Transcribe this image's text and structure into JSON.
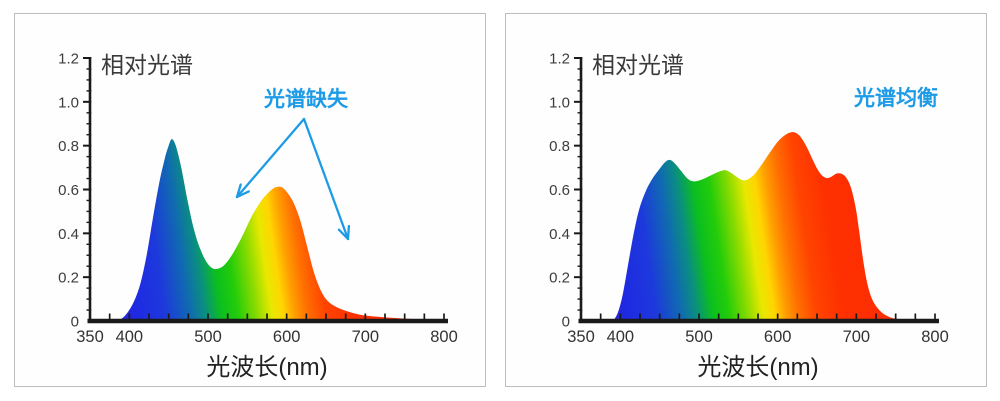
{
  "page": {
    "background": "#ffffff",
    "panel_border_color": "#bdbdbd",
    "axis_color": "#1a1a1a",
    "accent_blue": "#1d9be6"
  },
  "spectrum_colors": [
    [
      380,
      "#2a25cf"
    ],
    [
      410,
      "#1e2ae2"
    ],
    [
      445,
      "#1d39dc"
    ],
    [
      475,
      "#1069b2"
    ],
    [
      495,
      "#0a8f80"
    ],
    [
      515,
      "#0bbf1e"
    ],
    [
      535,
      "#23cc0a"
    ],
    [
      560,
      "#8fdc00"
    ],
    [
      578,
      "#e8e800"
    ],
    [
      592,
      "#ffd500"
    ],
    [
      606,
      "#ff9e00"
    ],
    [
      622,
      "#ff7000"
    ],
    [
      645,
      "#ff4400"
    ],
    [
      680,
      "#fe2f00"
    ],
    [
      800,
      "#fb2d08"
    ]
  ],
  "chart_data": [
    {
      "type": "area",
      "title": "相对光谱",
      "xlabel": "光波长(nm)",
      "annotation": "光谱缺失",
      "annotation_color": "#1d9be6",
      "xlim": [
        350,
        800
      ],
      "ylim": [
        0,
        1.2
      ],
      "x_ticks": [
        350,
        400,
        500,
        600,
        700,
        800
      ],
      "y_ticks": [
        "0",
        "0.2",
        "0.4",
        "0.6",
        "0.8",
        "1.0",
        "1.2"
      ],
      "x_minor_step_nm": 25,
      "y_minor_step": 0.05,
      "points": [
        [
          383,
          0
        ],
        [
          390,
          0.01
        ],
        [
          398,
          0.04
        ],
        [
          406,
          0.09
        ],
        [
          414,
          0.17
        ],
        [
          422,
          0.3
        ],
        [
          430,
          0.47
        ],
        [
          438,
          0.63
        ],
        [
          445,
          0.74
        ],
        [
          450,
          0.8
        ],
        [
          454,
          0.83
        ],
        [
          459,
          0.8
        ],
        [
          466,
          0.7
        ],
        [
          474,
          0.55
        ],
        [
          482,
          0.42
        ],
        [
          490,
          0.33
        ],
        [
          498,
          0.27
        ],
        [
          506,
          0.24
        ],
        [
          514,
          0.24
        ],
        [
          522,
          0.26
        ],
        [
          532,
          0.31
        ],
        [
          544,
          0.39
        ],
        [
          556,
          0.48
        ],
        [
          568,
          0.55
        ],
        [
          578,
          0.59
        ],
        [
          586,
          0.61
        ],
        [
          594,
          0.61
        ],
        [
          602,
          0.58
        ],
        [
          610,
          0.53
        ],
        [
          618,
          0.45
        ],
        [
          626,
          0.34
        ],
        [
          634,
          0.23
        ],
        [
          642,
          0.15
        ],
        [
          650,
          0.1
        ],
        [
          660,
          0.07
        ],
        [
          672,
          0.05
        ],
        [
          686,
          0.035
        ],
        [
          700,
          0.025
        ],
        [
          720,
          0.018
        ],
        [
          745,
          0.012
        ],
        [
          770,
          0.008
        ],
        [
          800,
          0.006
        ]
      ]
    },
    {
      "type": "area",
      "title": "相对光谱",
      "xlabel": "光波长(nm)",
      "annotation": "光谱均衡",
      "annotation_color": "#1d9be6",
      "xlim": [
        350,
        800
      ],
      "ylim": [
        0,
        1.2
      ],
      "x_ticks": [
        350,
        400,
        500,
        600,
        700,
        800
      ],
      "y_ticks": [
        "0",
        "0.2",
        "0.4",
        "0.6",
        "0.8",
        "1.0",
        "1.2"
      ],
      "x_minor_step_nm": 25,
      "y_minor_step": 0.05,
      "points": [
        [
          391,
          0
        ],
        [
          397,
          0.04
        ],
        [
          403,
          0.12
        ],
        [
          410,
          0.26
        ],
        [
          417,
          0.4
        ],
        [
          424,
          0.51
        ],
        [
          432,
          0.59
        ],
        [
          440,
          0.645
        ],
        [
          449,
          0.69
        ],
        [
          457,
          0.725
        ],
        [
          463,
          0.735
        ],
        [
          469,
          0.72
        ],
        [
          476,
          0.69
        ],
        [
          484,
          0.655
        ],
        [
          491,
          0.638
        ],
        [
          499,
          0.64
        ],
        [
          508,
          0.652
        ],
        [
          517,
          0.668
        ],
        [
          526,
          0.682
        ],
        [
          534,
          0.688
        ],
        [
          541,
          0.675
        ],
        [
          549,
          0.655
        ],
        [
          556,
          0.642
        ],
        [
          563,
          0.648
        ],
        [
          571,
          0.672
        ],
        [
          580,
          0.715
        ],
        [
          590,
          0.768
        ],
        [
          600,
          0.818
        ],
        [
          610,
          0.85
        ],
        [
          620,
          0.862
        ],
        [
          628,
          0.845
        ],
        [
          636,
          0.8
        ],
        [
          644,
          0.74
        ],
        [
          651,
          0.69
        ],
        [
          657,
          0.662
        ],
        [
          663,
          0.652
        ],
        [
          669,
          0.66
        ],
        [
          675,
          0.673
        ],
        [
          681,
          0.672
        ],
        [
          687,
          0.655
        ],
        [
          693,
          0.61
        ],
        [
          699,
          0.52
        ],
        [
          704,
          0.4
        ],
        [
          709,
          0.27
        ],
        [
          714,
          0.17
        ],
        [
          720,
          0.1
        ],
        [
          728,
          0.055
        ],
        [
          738,
          0.025
        ],
        [
          750,
          0.01
        ],
        [
          762,
          0.004
        ]
      ]
    }
  ]
}
